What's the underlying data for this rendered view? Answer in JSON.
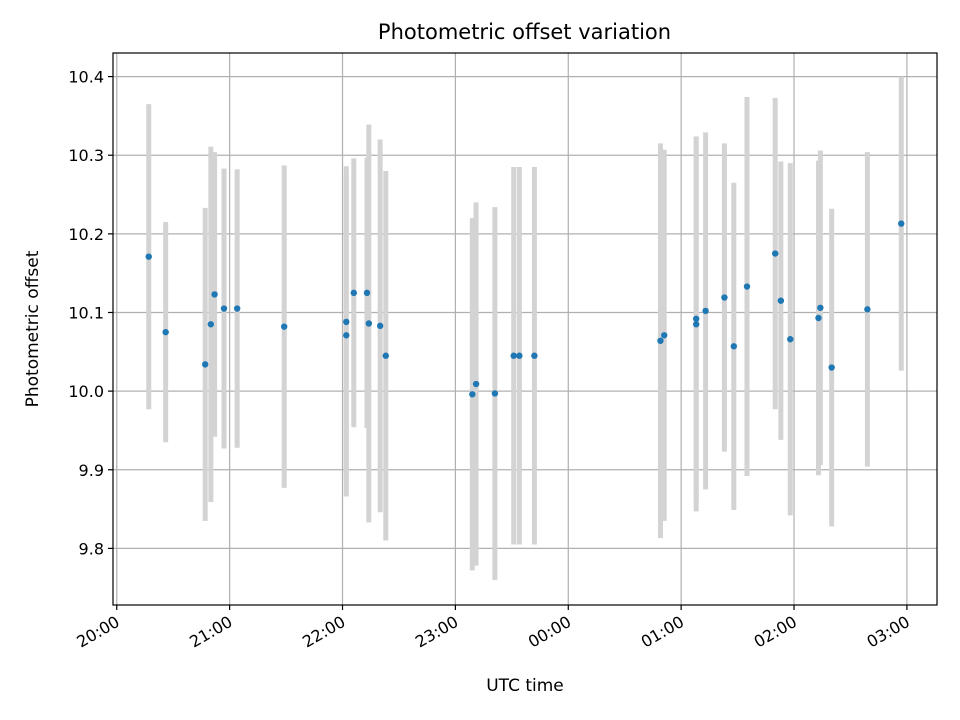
{
  "chart_data": {
    "type": "scatter",
    "title": "Photometric offset variation",
    "xlabel": "UTC time",
    "ylabel": "Photometric offset",
    "x_axis_type": "time",
    "xlim": [
      "2000-01-01T19:58",
      "2000-01-02T03:16"
    ],
    "ylim": [
      9.728,
      10.43
    ],
    "x_ticks": [
      {
        "value": "2000-01-01T20:00",
        "label": "20:00"
      },
      {
        "value": "2000-01-01T21:00",
        "label": "21:00"
      },
      {
        "value": "2000-01-01T22:00",
        "label": "22:00"
      },
      {
        "value": "2000-01-01T23:00",
        "label": "23:00"
      },
      {
        "value": "2000-01-02T00:00",
        "label": "00:00"
      },
      {
        "value": "2000-01-02T01:00",
        "label": "01:00"
      },
      {
        "value": "2000-01-02T02:00",
        "label": "02:00"
      },
      {
        "value": "2000-01-02T03:00",
        "label": "03:00"
      }
    ],
    "y_ticks": [
      {
        "value": 9.8,
        "label": "9.8"
      },
      {
        "value": 9.9,
        "label": "9.9"
      },
      {
        "value": 10.0,
        "label": "10.0"
      },
      {
        "value": 10.1,
        "label": "10.1"
      },
      {
        "value": 10.2,
        "label": "10.2"
      },
      {
        "value": 10.3,
        "label": "10.3"
      },
      {
        "value": 10.4,
        "label": "10.4"
      }
    ],
    "grid": true,
    "colors": {
      "point": "#1f77b4",
      "errorbar": "#d3d3d3",
      "grid": "#b0b0b0"
    },
    "points": [
      {
        "t": "2000-01-01T20:17",
        "y": 10.171,
        "err": 0.194
      },
      {
        "t": "2000-01-01T20:26",
        "y": 10.075,
        "err": 0.14
      },
      {
        "t": "2000-01-01T20:47",
        "y": 10.034,
        "err": 0.199
      },
      {
        "t": "2000-01-01T20:50",
        "y": 10.085,
        "err": 0.226
      },
      {
        "t": "2000-01-01T20:52",
        "y": 10.123,
        "err": 0.181
      },
      {
        "t": "2000-01-01T20:57",
        "y": 10.105,
        "err": 0.178
      },
      {
        "t": "2000-01-01T21:04",
        "y": 10.105,
        "err": 0.177
      },
      {
        "t": "2000-01-01T21:29",
        "y": 10.082,
        "err": 0.205
      },
      {
        "t": "2000-01-01T22:02",
        "y": 10.071,
        "err": 0.205
      },
      {
        "t": "2000-01-01T22:02",
        "y": 10.088,
        "err": 0.198
      },
      {
        "t": "2000-01-01T22:06",
        "y": 10.125,
        "err": 0.171
      },
      {
        "t": "2000-01-01T22:13",
        "y": 10.125,
        "err": 0.172
      },
      {
        "t": "2000-01-01T22:14",
        "y": 10.086,
        "err": 0.253
      },
      {
        "t": "2000-01-01T22:20",
        "y": 10.083,
        "err": 0.237
      },
      {
        "t": "2000-01-01T22:23",
        "y": 10.045,
        "err": 0.235
      },
      {
        "t": "2000-01-01T23:09",
        "y": 9.996,
        "err": 0.224
      },
      {
        "t": "2000-01-01T23:11",
        "y": 10.009,
        "err": 0.231
      },
      {
        "t": "2000-01-01T23:21",
        "y": 9.997,
        "err": 0.237
      },
      {
        "t": "2000-01-01T23:31",
        "y": 10.045,
        "err": 0.24
      },
      {
        "t": "2000-01-01T23:34",
        "y": 10.045,
        "err": 0.24
      },
      {
        "t": "2000-01-01T23:42",
        "y": 10.045,
        "err": 0.24
      },
      {
        "t": "2000-01-02T00:49",
        "y": 10.064,
        "err": 0.251
      },
      {
        "t": "2000-01-02T00:51",
        "y": 10.071,
        "err": 0.236
      },
      {
        "t": "2000-01-02T01:08",
        "y": 10.085,
        "err": 0.238
      },
      {
        "t": "2000-01-02T01:08",
        "y": 10.092,
        "err": 0.232
      },
      {
        "t": "2000-01-02T01:13",
        "y": 10.102,
        "err": 0.227
      },
      {
        "t": "2000-01-02T01:23",
        "y": 10.119,
        "err": 0.196
      },
      {
        "t": "2000-01-02T01:28",
        "y": 10.057,
        "err": 0.208
      },
      {
        "t": "2000-01-02T01:35",
        "y": 10.133,
        "err": 0.241
      },
      {
        "t": "2000-01-02T01:50",
        "y": 10.175,
        "err": 0.198
      },
      {
        "t": "2000-01-02T01:53",
        "y": 10.115,
        "err": 0.177
      },
      {
        "t": "2000-01-02T01:58",
        "y": 10.066,
        "err": 0.224
      },
      {
        "t": "2000-01-02T02:13",
        "y": 10.093,
        "err": 0.2
      },
      {
        "t": "2000-01-02T02:14",
        "y": 10.106,
        "err": 0.2
      },
      {
        "t": "2000-01-02T02:20",
        "y": 10.03,
        "err": 0.202
      },
      {
        "t": "2000-01-02T02:39",
        "y": 10.104,
        "err": 0.2
      },
      {
        "t": "2000-01-02T02:57",
        "y": 10.213,
        "err": 0.187
      }
    ]
  }
}
